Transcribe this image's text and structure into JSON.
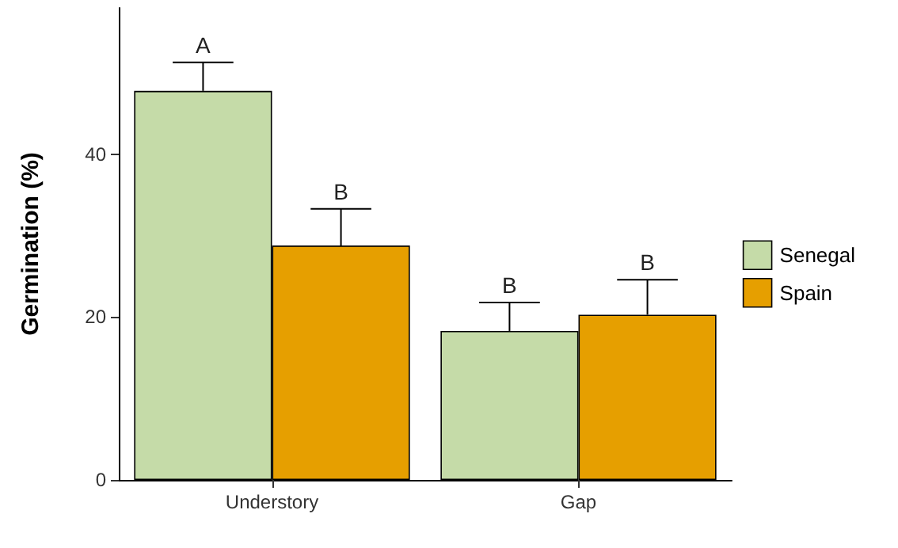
{
  "chart_data": {
    "type": "bar",
    "ylabel": "Germination (%)",
    "categories": [
      "Understory",
      "Gap"
    ],
    "series": [
      {
        "name": "Senegal",
        "color": "#c5dba8",
        "values": [
          47.8,
          18.3
        ],
        "errors": [
          [
            47.8,
            51.3
          ],
          [
            18.3,
            21.8
          ]
        ]
      },
      {
        "name": "Spain",
        "color": "#e69f00",
        "values": [
          28.8,
          20.3
        ],
        "errors": [
          [
            28.8,
            33.3
          ],
          [
            20.3,
            24.6
          ]
        ]
      }
    ],
    "ylim": [
      0,
      58
    ],
    "yticks": [
      0,
      20,
      40
    ],
    "grid": false,
    "legend": "right",
    "annotations": [
      "A",
      "B",
      "B",
      "B"
    ]
  }
}
